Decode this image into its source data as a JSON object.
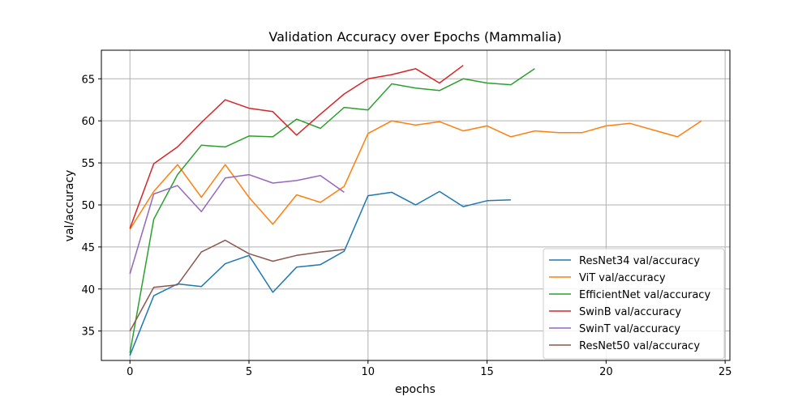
{
  "chart_data": {
    "type": "line",
    "title": "Validation Accuracy over Epochs (Mammalia)",
    "xlabel": "epochs",
    "ylabel": "val/accuracy",
    "xlim": [
      -1.2,
      25.2
    ],
    "ylim": [
      31.5,
      68.4
    ],
    "xticks": [
      0,
      5,
      10,
      15,
      20,
      25
    ],
    "yticks": [
      35,
      40,
      45,
      50,
      55,
      60,
      65
    ],
    "grid": true,
    "legend_position": "lower right",
    "series": [
      {
        "name": "ResNet34 val/accuracy",
        "color": "#1f77b4",
        "x": [
          0,
          1,
          2,
          3,
          4,
          5,
          6,
          7,
          8,
          9,
          10,
          11,
          12,
          13,
          14,
          15,
          16
        ],
        "y": [
          32.1,
          39.2,
          40.6,
          40.3,
          43.0,
          44.0,
          39.6,
          42.6,
          42.9,
          44.5,
          51.1,
          51.5,
          50.0,
          51.6,
          49.8,
          50.5,
          50.6
        ]
      },
      {
        "name": "ViT val/accuracy",
        "color": "#ff7f0e",
        "x": [
          0,
          1,
          2,
          3,
          4,
          5,
          6,
          7,
          8,
          9,
          10,
          11,
          12,
          13,
          14,
          15,
          16,
          17,
          18,
          19,
          20,
          21,
          22,
          23,
          24
        ],
        "y": [
          47.1,
          51.6,
          54.8,
          50.9,
          54.8,
          50.9,
          47.7,
          51.2,
          50.3,
          52.2,
          58.5,
          60.0,
          59.5,
          59.9,
          58.8,
          59.4,
          58.1,
          58.8,
          58.6,
          58.6,
          59.4,
          59.7,
          58.9,
          58.1,
          60.0
        ]
      },
      {
        "name": "EfficientNet val/accuracy",
        "color": "#2ca02c",
        "x": [
          0,
          1,
          2,
          3,
          4,
          5,
          6,
          7,
          8,
          9,
          10,
          11,
          12,
          13,
          14,
          15,
          16,
          17
        ],
        "y": [
          32.4,
          48.3,
          53.6,
          57.1,
          56.9,
          58.2,
          58.1,
          60.2,
          59.1,
          61.6,
          61.3,
          64.4,
          63.9,
          63.6,
          65.0,
          64.5,
          64.3,
          66.2
        ]
      },
      {
        "name": "SwinB val/accuracy",
        "color": "#d62728",
        "x": [
          0,
          1,
          2,
          3,
          4,
          5,
          6,
          7,
          8,
          9,
          10,
          11,
          12,
          13,
          14
        ],
        "y": [
          47.2,
          54.9,
          56.9,
          59.8,
          62.5,
          61.5,
          61.1,
          58.3,
          60.8,
          63.2,
          65.0,
          65.5,
          66.2,
          64.5,
          66.6
        ]
      },
      {
        "name": "SwinT val/accuracy",
        "color": "#9467bd",
        "x": [
          0,
          1,
          2,
          3,
          4,
          5,
          6,
          7,
          8,
          9
        ],
        "y": [
          41.8,
          51.3,
          52.3,
          49.2,
          53.2,
          53.6,
          52.6,
          52.9,
          53.5,
          51.5
        ]
      },
      {
        "name": "ResNet50 val/accuracy",
        "color": "#8c564b",
        "x": [
          0,
          1,
          2,
          3,
          4,
          5,
          6,
          7,
          8,
          9
        ],
        "y": [
          35.0,
          40.2,
          40.5,
          44.4,
          45.8,
          44.2,
          43.3,
          44.0,
          44.4,
          44.7
        ]
      }
    ]
  }
}
